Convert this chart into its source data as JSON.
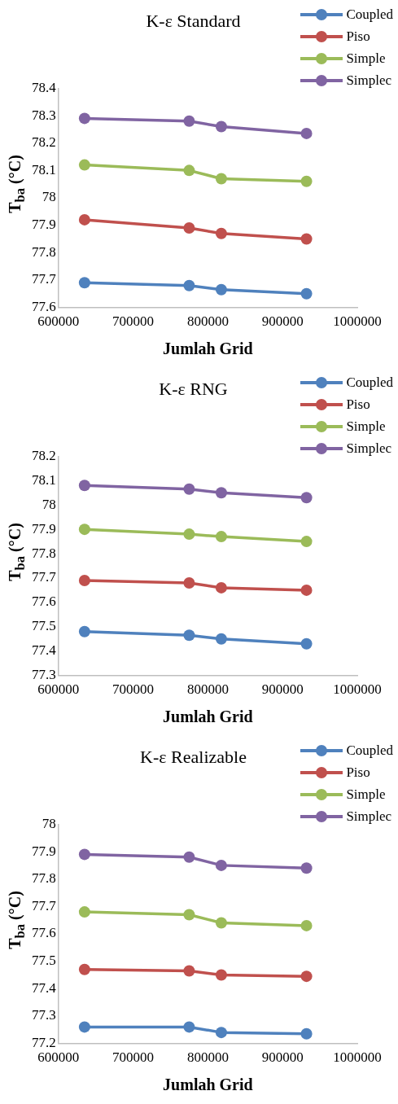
{
  "chart_data": [
    {
      "type": "line",
      "title": "K-ε Standard",
      "xlabel": "Jumlah Grid",
      "ylabel": "T$_{ba}$ (°C)",
      "x": [
        635000,
        775000,
        818000,
        932000
      ],
      "xlim": [
        600000,
        1000000
      ],
      "xticks": [
        600000,
        700000,
        800000,
        900000,
        1000000
      ],
      "ylim": [
        77.6,
        78.4
      ],
      "yticks": [
        77.6,
        77.7,
        77.8,
        77.9,
        78,
        78.1,
        78.2,
        78.3,
        78.4
      ],
      "grid": false,
      "legend": "top right",
      "marker": "circle",
      "line_style": "solid",
      "series": [
        {
          "name": "Coupled",
          "color": "#4f81bd",
          "values": [
            77.69,
            77.68,
            77.665,
            77.65
          ]
        },
        {
          "name": "Piso",
          "color": "#c0504d",
          "values": [
            77.92,
            77.89,
            77.87,
            77.85
          ]
        },
        {
          "name": "Simple",
          "color": "#9bbb59",
          "values": [
            78.12,
            78.1,
            78.07,
            78.06
          ]
        },
        {
          "name": "Simplec",
          "color": "#8064a2",
          "values": [
            78.29,
            78.28,
            78.26,
            78.235
          ]
        }
      ]
    },
    {
      "type": "line",
      "title": "K-ε RNG",
      "xlabel": "Jumlah Grid",
      "ylabel": "T$_{ba}$ (°C)",
      "x": [
        635000,
        775000,
        818000,
        932000
      ],
      "xlim": [
        600000,
        1000000
      ],
      "xticks": [
        600000,
        700000,
        800000,
        900000,
        1000000
      ],
      "ylim": [
        77.3,
        78.2
      ],
      "yticks": [
        77.3,
        77.4,
        77.5,
        77.6,
        77.7,
        77.8,
        77.9,
        78,
        78.1,
        78.2
      ],
      "grid": false,
      "legend": "top right",
      "marker": "circle",
      "line_style": "solid",
      "series": [
        {
          "name": "Coupled",
          "color": "#4f81bd",
          "values": [
            77.48,
            77.465,
            77.45,
            77.43
          ]
        },
        {
          "name": "Piso",
          "color": "#c0504d",
          "values": [
            77.69,
            77.68,
            77.66,
            77.65
          ]
        },
        {
          "name": "Simple",
          "color": "#9bbb59",
          "values": [
            77.9,
            77.88,
            77.87,
            77.85
          ]
        },
        {
          "name": "Simplec",
          "color": "#8064a2",
          "values": [
            78.08,
            78.065,
            78.05,
            78.03
          ]
        }
      ]
    },
    {
      "type": "line",
      "title": "K-ε Realizable",
      "xlabel": "Jumlah Grid",
      "ylabel": "T$_{ba}$ (°C)",
      "x": [
        635000,
        775000,
        818000,
        932000
      ],
      "xlim": [
        600000,
        1000000
      ],
      "xticks": [
        600000,
        700000,
        800000,
        900000,
        1000000
      ],
      "ylim": [
        77.2,
        78
      ],
      "yticks": [
        77.2,
        77.3,
        77.4,
        77.5,
        77.6,
        77.7,
        77.8,
        77.9,
        78
      ],
      "grid": false,
      "legend": "top right",
      "marker": "circle",
      "line_style": "solid",
      "series": [
        {
          "name": "Coupled",
          "color": "#4f81bd",
          "values": [
            77.26,
            77.26,
            77.24,
            77.235
          ]
        },
        {
          "name": "Piso",
          "color": "#c0504d",
          "values": [
            77.47,
            77.465,
            77.45,
            77.445
          ]
        },
        {
          "name": "Simple",
          "color": "#9bbb59",
          "values": [
            77.68,
            77.67,
            77.64,
            77.63
          ]
        },
        {
          "name": "Simplec",
          "color": "#8064a2",
          "values": [
            77.89,
            77.88,
            77.85,
            77.84
          ]
        }
      ]
    }
  ]
}
